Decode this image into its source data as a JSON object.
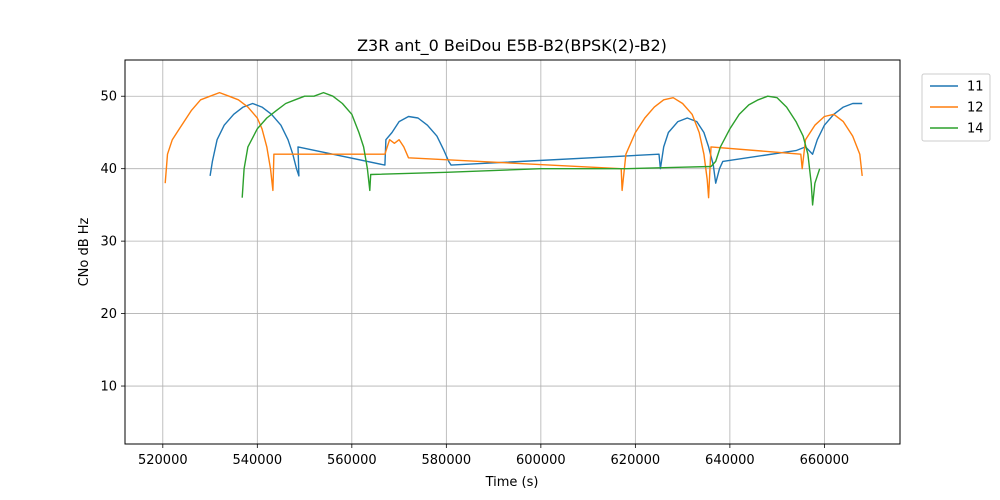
{
  "chart_data": {
    "type": "line",
    "title": "Z3R ant_0 BeiDou E5B-B2(BPSK(2)-B2)",
    "xlabel": "Time (s)",
    "ylabel": "CNo dB Hz",
    "xlim": [
      512000,
      676000
    ],
    "ylim": [
      2,
      55
    ],
    "xticks": [
      520000,
      540000,
      560000,
      580000,
      600000,
      620000,
      640000,
      660000
    ],
    "yticks": [
      10,
      20,
      30,
      40,
      50
    ],
    "grid": true,
    "legend_position": "upper-right-outside",
    "series": [
      {
        "name": "11",
        "color": "#1f77b4",
        "points": [
          [
            530000,
            39
          ],
          [
            530500,
            41
          ],
          [
            531500,
            44
          ],
          [
            533000,
            46
          ],
          [
            535000,
            47.5
          ],
          [
            537000,
            48.5
          ],
          [
            539000,
            49
          ],
          [
            541000,
            48.5
          ],
          [
            543000,
            47.5
          ],
          [
            545000,
            46
          ],
          [
            546500,
            44
          ],
          [
            547500,
            42
          ],
          [
            548300,
            40
          ],
          [
            548800,
            39
          ],
          [
            548600,
            43
          ],
          [
            567000,
            40.5
          ],
          [
            567200,
            44
          ],
          [
            568500,
            45
          ],
          [
            570000,
            46.5
          ],
          [
            572000,
            47.2
          ],
          [
            574000,
            47
          ],
          [
            576000,
            46
          ],
          [
            578000,
            44.5
          ],
          [
            579500,
            42.5
          ],
          [
            580500,
            41
          ],
          [
            581000,
            40.5
          ],
          [
            625000,
            42
          ],
          [
            625300,
            40
          ],
          [
            626000,
            43
          ],
          [
            627000,
            45
          ],
          [
            629000,
            46.5
          ],
          [
            631000,
            47
          ],
          [
            633000,
            46.5
          ],
          [
            634500,
            45
          ],
          [
            635500,
            43
          ],
          [
            636500,
            40.5
          ],
          [
            637000,
            38
          ],
          [
            637800,
            40
          ],
          [
            638500,
            41
          ],
          [
            654000,
            42.5
          ],
          [
            656000,
            43
          ],
          [
            657500,
            42
          ],
          [
            658500,
            44
          ],
          [
            660000,
            46
          ],
          [
            662000,
            47.5
          ],
          [
            664000,
            48.5
          ],
          [
            666000,
            49
          ],
          [
            668000,
            49
          ]
        ]
      },
      {
        "name": "12",
        "color": "#ff7f0e",
        "points": [
          [
            520500,
            38
          ],
          [
            521000,
            42
          ],
          [
            522000,
            44
          ],
          [
            524000,
            46
          ],
          [
            526000,
            48
          ],
          [
            528000,
            49.5
          ],
          [
            530000,
            50
          ],
          [
            532000,
            50.5
          ],
          [
            534000,
            50
          ],
          [
            536000,
            49.5
          ],
          [
            538000,
            48.5
          ],
          [
            540000,
            47
          ],
          [
            541000,
            45.5
          ],
          [
            542000,
            43
          ],
          [
            542800,
            40
          ],
          [
            543300,
            37
          ],
          [
            543500,
            42
          ],
          [
            567000,
            42
          ],
          [
            568000,
            44
          ],
          [
            569000,
            43.5
          ],
          [
            570000,
            44
          ],
          [
            571000,
            43
          ],
          [
            572000,
            41.5
          ],
          [
            617000,
            40
          ],
          [
            617200,
            37
          ],
          [
            618000,
            42
          ],
          [
            620000,
            45
          ],
          [
            622000,
            47
          ],
          [
            624000,
            48.5
          ],
          [
            626000,
            49.5
          ],
          [
            628000,
            49.8
          ],
          [
            630000,
            49
          ],
          [
            632000,
            47.5
          ],
          [
            633500,
            45
          ],
          [
            634500,
            42
          ],
          [
            635200,
            38.5
          ],
          [
            635500,
            36
          ],
          [
            636000,
            43
          ],
          [
            655000,
            42
          ],
          [
            655300,
            40
          ],
          [
            656000,
            44
          ],
          [
            658000,
            46
          ],
          [
            660000,
            47.2
          ],
          [
            662000,
            47.5
          ],
          [
            664000,
            46.5
          ],
          [
            666000,
            44.5
          ],
          [
            667500,
            42
          ],
          [
            668000,
            39
          ]
        ]
      },
      {
        "name": "14",
        "color": "#2ca02c",
        "points": [
          [
            536800,
            36
          ],
          [
            537200,
            40
          ],
          [
            538000,
            43
          ],
          [
            540000,
            45.5
          ],
          [
            542000,
            47
          ],
          [
            544000,
            48
          ],
          [
            546000,
            49
          ],
          [
            548000,
            49.5
          ],
          [
            550000,
            50
          ],
          [
            552000,
            50
          ],
          [
            554000,
            50.5
          ],
          [
            556000,
            50
          ],
          [
            558000,
            49
          ],
          [
            560000,
            47.5
          ],
          [
            561500,
            45
          ],
          [
            562500,
            43
          ],
          [
            563300,
            40
          ],
          [
            563800,
            37
          ],
          [
            564000,
            39.2
          ],
          [
            580000,
            39.5
          ],
          [
            600000,
            40
          ],
          [
            618000,
            40
          ],
          [
            630000,
            40.2
          ],
          [
            636000,
            40.3
          ],
          [
            637000,
            41
          ],
          [
            638000,
            43
          ],
          [
            640000,
            45.5
          ],
          [
            642000,
            47.5
          ],
          [
            644000,
            48.8
          ],
          [
            646000,
            49.5
          ],
          [
            648000,
            50
          ],
          [
            650000,
            49.8
          ],
          [
            652000,
            48.5
          ],
          [
            654000,
            46.5
          ],
          [
            655500,
            44.5
          ],
          [
            656500,
            42
          ],
          [
            657200,
            38
          ],
          [
            657500,
            35
          ],
          [
            658000,
            38
          ],
          [
            659000,
            40
          ]
        ]
      }
    ],
    "legend": [
      "11",
      "12",
      "14"
    ]
  }
}
